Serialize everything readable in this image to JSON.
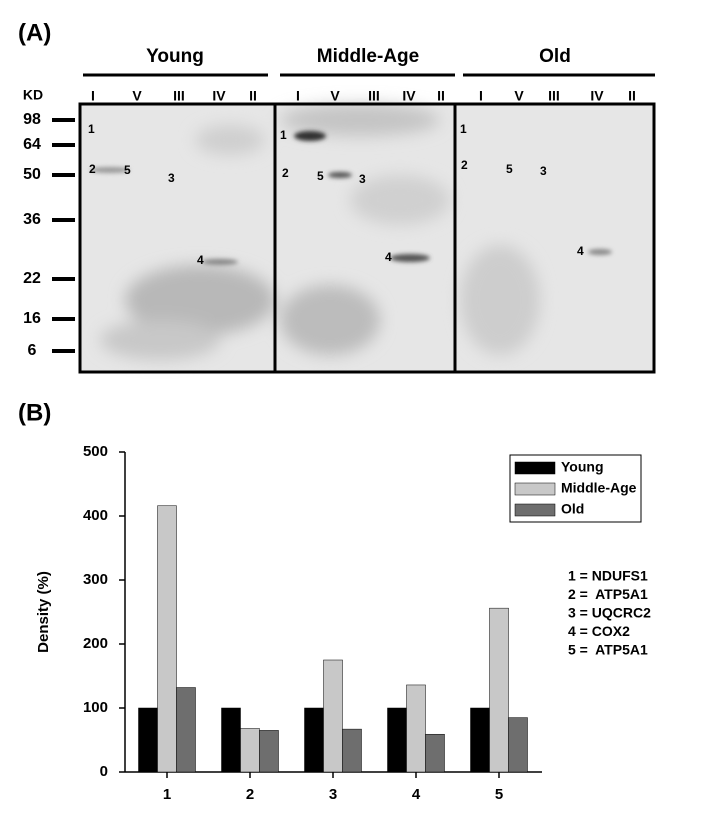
{
  "panel_a": {
    "label": "(A)",
    "size_unit": "KD",
    "groups": [
      {
        "name": "Young",
        "lanes": [
          "I",
          "V",
          "III",
          "IV",
          "II"
        ],
        "band_labels": [
          "1",
          "2",
          "5",
          "3",
          "4"
        ]
      },
      {
        "name": "Middle-Age",
        "lanes": [
          "I",
          "V",
          "III",
          "IV",
          "II"
        ],
        "band_labels": [
          "1",
          "2",
          "5",
          "3",
          "4"
        ]
      },
      {
        "name": "Old",
        "lanes": [
          "I",
          "V",
          "III",
          "IV",
          "II"
        ],
        "band_labels": [
          "1",
          "2",
          "5",
          "3",
          "4"
        ]
      }
    ],
    "markers": [
      98,
      64,
      50,
      36,
      22,
      16,
      6
    ]
  },
  "chart_data": {
    "type": "bar",
    "panel_label": "(B)",
    "ylabel": "Density (%)",
    "categories": [
      "1",
      "2",
      "3",
      "4",
      "5"
    ],
    "series": [
      {
        "name": "Young",
        "color": "#000000",
        "values": [
          100,
          100,
          100,
          100,
          100
        ]
      },
      {
        "name": "Middle-Age",
        "color": "#c8c8c8",
        "values": [
          416,
          68,
          175,
          136,
          256
        ]
      },
      {
        "name": "Old",
        "color": "#6e6e6e",
        "values": [
          132,
          65,
          67,
          59,
          85
        ]
      }
    ],
    "ylim": [
      0,
      500
    ],
    "yticks": [
      0,
      100,
      200,
      300,
      400,
      500
    ],
    "legend": "upper right",
    "notes": [
      "1 = NDUFS1",
      "2 =  ATP5A1",
      "3 = UQCRC2",
      "4 = COX2",
      "5 =  ATP5A1"
    ]
  }
}
